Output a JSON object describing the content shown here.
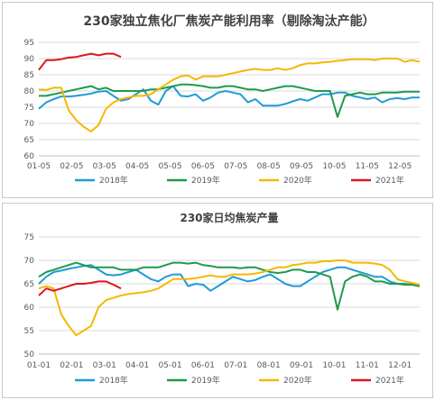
{
  "chart_data": [
    {
      "type": "line",
      "title": "230家独立焦化厂焦炭产能利用率（剔除淘汰产能）",
      "xlabel": "",
      "ylabel": "",
      "ylim": [
        60,
        95
      ],
      "yticks": [
        60,
        65,
        70,
        75,
        80,
        85,
        90,
        95
      ],
      "x_tick_labels": [
        "01-05",
        "02-05",
        "03-05",
        "04-05",
        "05-05",
        "06-05",
        "07-05",
        "08-05",
        "09-05",
        "10-05",
        "11-05",
        "12-05"
      ],
      "grid": true,
      "legend": "bottom",
      "series": [
        {
          "name": "2018年",
          "color": "#1f9bd7",
          "x": [
            1,
            2,
            3,
            4,
            5,
            6,
            7,
            8,
            9,
            10,
            11,
            12,
            13,
            14,
            15,
            16,
            17,
            18,
            19,
            20,
            21,
            22,
            23,
            24,
            25,
            26,
            27,
            28,
            29,
            30,
            31,
            32,
            33,
            34,
            35,
            36,
            37,
            38,
            39,
            40,
            41,
            42,
            43,
            44,
            45,
            46,
            47,
            48,
            49,
            50,
            51,
            52
          ],
          "values": [
            74.5,
            76.5,
            77.5,
            78.3,
            78.3,
            78.5,
            78.8,
            79.2,
            79.8,
            80.0,
            78.5,
            77.0,
            77.5,
            79.0,
            80.5,
            77.0,
            75.8,
            80.0,
            81.5,
            78.5,
            78.3,
            79.0,
            77.0,
            78.0,
            79.5,
            80.0,
            79.5,
            79.0,
            76.5,
            77.5,
            75.5,
            75.5,
            75.5,
            76.0,
            76.8,
            77.5,
            77.0,
            78.0,
            79.0,
            79.0,
            79.5,
            79.5,
            78.5,
            78.0,
            77.5,
            78.0,
            76.5,
            77.5,
            77.8,
            77.5,
            78.0,
            78.0
          ]
        },
        {
          "name": "2019年",
          "color": "#1e9a4a",
          "x": [
            1,
            2,
            3,
            4,
            5,
            6,
            7,
            8,
            9,
            10,
            11,
            12,
            13,
            14,
            15,
            16,
            17,
            18,
            19,
            20,
            21,
            22,
            23,
            24,
            25,
            26,
            27,
            28,
            29,
            30,
            31,
            32,
            33,
            34,
            35,
            36,
            37,
            38,
            39,
            40,
            41,
            42,
            43,
            44,
            45,
            46,
            47,
            48,
            49,
            50,
            51,
            52
          ],
          "values": [
            78.5,
            78.5,
            79.0,
            79.5,
            80.0,
            80.5,
            81.0,
            81.5,
            80.5,
            81.0,
            80.0,
            80.0,
            80.0,
            80.0,
            80.0,
            80.5,
            80.5,
            81.0,
            81.5,
            82.0,
            82.0,
            81.8,
            81.5,
            81.0,
            81.0,
            81.5,
            81.5,
            81.0,
            80.5,
            80.5,
            80.0,
            80.5,
            81.0,
            81.5,
            81.5,
            81.0,
            80.5,
            80.0,
            80.0,
            80.0,
            72.0,
            78.5,
            79.0,
            79.5,
            79.0,
            79.0,
            79.5,
            79.5,
            79.5,
            79.8,
            79.8,
            79.8
          ]
        },
        {
          "name": "2020年",
          "color": "#f5b800",
          "x": [
            1,
            2,
            3,
            4,
            5,
            6,
            7,
            8,
            9,
            10,
            11,
            12,
            13,
            14,
            15,
            16,
            17,
            18,
            19,
            20,
            21,
            22,
            23,
            24,
            25,
            26,
            27,
            28,
            29,
            30,
            31,
            32,
            33,
            34,
            35,
            36,
            37,
            38,
            39,
            40,
            41,
            42,
            43,
            44,
            45,
            46,
            47,
            48,
            49,
            50,
            51,
            52
          ],
          "values": [
            80.5,
            80.3,
            81.0,
            81.0,
            74.0,
            71.0,
            69.0,
            67.5,
            69.5,
            74.5,
            76.5,
            77.5,
            78.0,
            78.5,
            78.5,
            79.0,
            80.5,
            82.0,
            83.5,
            84.5,
            84.8,
            83.5,
            84.5,
            84.5,
            84.5,
            85.0,
            85.5,
            86.0,
            86.5,
            86.8,
            86.5,
            86.5,
            87.0,
            86.5,
            87.0,
            88.0,
            88.5,
            88.5,
            88.8,
            89.0,
            89.3,
            89.5,
            89.8,
            89.8,
            89.8,
            89.5,
            90.0,
            90.0,
            90.0,
            89.0,
            89.5,
            89.0
          ]
        },
        {
          "name": "2021年",
          "color": "#e0141e",
          "x": [
            1,
            2,
            3,
            4,
            5,
            6,
            7,
            8,
            9,
            10,
            11,
            12
          ],
          "values": [
            86.5,
            89.5,
            89.5,
            89.8,
            90.3,
            90.5,
            91.0,
            91.5,
            91.0,
            91.5,
            91.5,
            90.5
          ]
        }
      ]
    },
    {
      "type": "line",
      "title": "230家日均焦炭产量",
      "xlabel": "",
      "ylabel": "",
      "ylim": [
        50,
        75
      ],
      "yticks": [
        50,
        55,
        60,
        65,
        70,
        75
      ],
      "x_tick_labels": [
        "01-01",
        "02-01",
        "03-01",
        "04-01",
        "05-01",
        "06-01",
        "07-01",
        "08-01",
        "09-01",
        "10-01",
        "11-01",
        "12-01"
      ],
      "grid": true,
      "legend": "bottom",
      "series": [
        {
          "name": "2018年",
          "color": "#1f9bd7",
          "x": [
            1,
            2,
            3,
            4,
            5,
            6,
            7,
            8,
            9,
            10,
            11,
            12,
            13,
            14,
            15,
            16,
            17,
            18,
            19,
            20,
            21,
            22,
            23,
            24,
            25,
            26,
            27,
            28,
            29,
            30,
            31,
            32,
            33,
            34,
            35,
            36,
            37,
            38,
            39,
            40,
            41,
            42,
            43,
            44,
            45,
            46,
            47,
            48,
            49,
            50,
            51,
            52
          ],
          "values": [
            65.0,
            66.5,
            67.5,
            67.8,
            68.2,
            68.5,
            68.8,
            69.0,
            68.0,
            67.0,
            66.8,
            67.0,
            67.5,
            68.0,
            67.0,
            66.0,
            65.5,
            66.5,
            67.0,
            67.0,
            64.5,
            65.0,
            64.8,
            63.5,
            64.5,
            65.5,
            66.5,
            66.0,
            65.5,
            65.8,
            66.5,
            67.0,
            66.0,
            65.0,
            64.5,
            64.5,
            65.5,
            66.5,
            67.5,
            68.0,
            68.5,
            68.5,
            68.0,
            67.5,
            67.0,
            66.5,
            66.5,
            65.5,
            65.0,
            65.0,
            64.8,
            64.5
          ]
        },
        {
          "name": "2019年",
          "color": "#1e9a4a",
          "x": [
            1,
            2,
            3,
            4,
            5,
            6,
            7,
            8,
            9,
            10,
            11,
            12,
            13,
            14,
            15,
            16,
            17,
            18,
            19,
            20,
            21,
            22,
            23,
            24,
            25,
            26,
            27,
            28,
            29,
            30,
            31,
            32,
            33,
            34,
            35,
            36,
            37,
            38,
            39,
            40,
            41,
            42,
            43,
            44,
            45,
            46,
            47,
            48,
            49,
            50,
            51,
            52
          ],
          "values": [
            66.5,
            67.5,
            68.0,
            68.5,
            69.0,
            69.5,
            69.0,
            68.5,
            68.5,
            68.5,
            68.5,
            68.0,
            68.0,
            68.0,
            68.5,
            68.5,
            68.5,
            69.0,
            69.5,
            69.5,
            69.3,
            69.5,
            69.0,
            68.8,
            68.5,
            68.5,
            68.5,
            68.3,
            68.5,
            68.5,
            68.0,
            67.5,
            67.3,
            67.5,
            68.0,
            68.0,
            67.5,
            67.5,
            67.0,
            66.5,
            59.5,
            65.5,
            66.5,
            67.0,
            66.5,
            65.5,
            65.5,
            65.0,
            65.0,
            64.8,
            64.8,
            64.5
          ]
        },
        {
          "name": "2020年",
          "color": "#f5b800",
          "x": [
            1,
            2,
            3,
            4,
            5,
            6,
            7,
            8,
            9,
            10,
            11,
            12,
            13,
            14,
            15,
            16,
            17,
            18,
            19,
            20,
            21,
            22,
            23,
            24,
            25,
            26,
            27,
            28,
            29,
            30,
            31,
            32,
            33,
            34,
            35,
            36,
            37,
            38,
            39,
            40,
            41,
            42,
            43,
            44,
            45,
            46,
            47,
            48,
            49,
            50,
            51,
            52
          ],
          "values": [
            64.0,
            64.5,
            64.0,
            58.5,
            56.0,
            54.0,
            55.0,
            56.0,
            60.0,
            61.5,
            62.0,
            62.5,
            62.8,
            63.0,
            63.2,
            63.5,
            64.0,
            65.0,
            66.0,
            66.0,
            66.0,
            66.2,
            66.5,
            66.8,
            66.5,
            66.5,
            67.0,
            67.0,
            67.0,
            67.2,
            67.5,
            68.0,
            68.5,
            68.5,
            69.0,
            69.2,
            69.5,
            69.5,
            69.8,
            69.8,
            70.0,
            70.0,
            69.5,
            69.5,
            69.5,
            69.3,
            69.0,
            68.0,
            66.0,
            65.5,
            65.2,
            64.8
          ]
        },
        {
          "name": "2021年",
          "color": "#e0141e",
          "x": [
            1,
            2,
            3,
            4,
            5,
            6,
            7,
            8,
            9,
            10,
            11,
            12
          ],
          "values": [
            62.5,
            64.0,
            63.5,
            64.0,
            64.5,
            65.0,
            65.0,
            65.2,
            65.5,
            65.5,
            64.8,
            64.0
          ]
        }
      ]
    }
  ]
}
